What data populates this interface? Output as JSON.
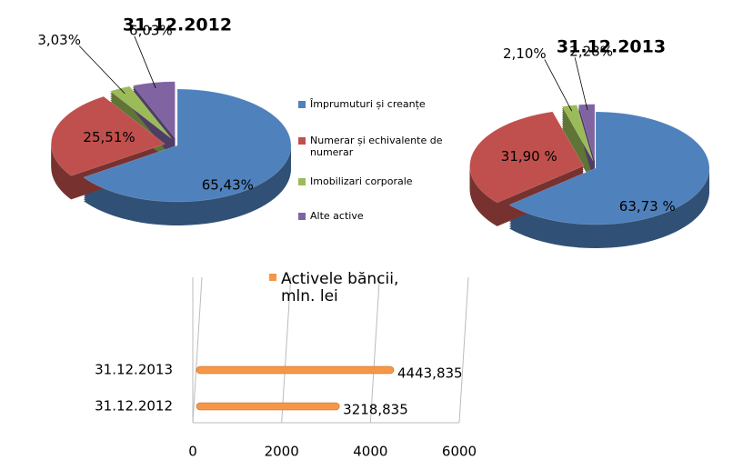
{
  "chart_data": [
    {
      "type": "pie",
      "title": "31.12.2012",
      "categories": [
        "Împrumuturi și creanțe",
        "Numerar și echivalente de numerar",
        "Imobilizari corporale",
        "Alte active"
      ],
      "values": [
        65.43,
        25.51,
        3.03,
        6.03
      ],
      "value_labels": [
        "65,43%",
        "25,51%",
        "3,03%",
        "6,03%"
      ],
      "colors": [
        "#4f81bd",
        "#c0504d",
        "#9bbb59",
        "#8064a2"
      ]
    },
    {
      "type": "pie",
      "title": "31.12.2013",
      "values": [
        63.73,
        31.9,
        2.1,
        2.28
      ],
      "value_labels": [
        "63,73 %",
        "31,90 %",
        "2,10%",
        "2,28%"
      ],
      "colors": [
        "#4f81bd",
        "#c0504d",
        "#9bbb59",
        "#8064a2"
      ]
    },
    {
      "type": "barh",
      "categories": [
        "31.12.2012",
        "31.12.2013"
      ],
      "series": [
        {
          "name": "Activele băncii, mln. lei",
          "color": "#f79646",
          "values": [
            3218.835,
            4443.835
          ]
        }
      ],
      "value_labels": [
        "3218,835",
        "4443,835"
      ],
      "xlim": [
        0,
        6000
      ],
      "xticks": [
        0,
        2000,
        4000,
        6000
      ],
      "grid": true
    }
  ]
}
